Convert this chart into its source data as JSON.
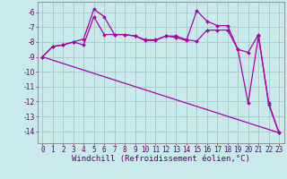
{
  "x": [
    0,
    1,
    2,
    3,
    4,
    5,
    6,
    7,
    8,
    9,
    10,
    11,
    12,
    13,
    14,
    15,
    16,
    17,
    18,
    19,
    20,
    21,
    22,
    23
  ],
  "line1": [
    -9.0,
    -8.3,
    -8.2,
    -8.0,
    -7.8,
    -5.8,
    -6.3,
    -7.5,
    -7.5,
    -7.6,
    -7.9,
    -7.9,
    -7.6,
    -7.7,
    -7.9,
    -5.9,
    -6.6,
    -6.9,
    -6.9,
    -8.5,
    -8.7,
    -7.5,
    -12.2,
    -14.1
  ],
  "line2": [
    -9.0,
    -8.3,
    -8.2,
    -8.0,
    -8.2,
    -6.3,
    -7.5,
    -7.5,
    -7.5,
    -7.6,
    -7.85,
    -7.85,
    -7.6,
    -7.6,
    -7.85,
    -7.95,
    -7.2,
    -7.2,
    -7.2,
    -8.5,
    -12.1,
    -7.6,
    -12.1,
    -14.1
  ],
  "trend_x": [
    0,
    23
  ],
  "trend_y": [
    -9.0,
    -14.1
  ],
  "bg_color": "#c8eaea",
  "grid_color": "#aacccc",
  "line_color": "#aa00aa",
  "ylabel_ticks": [
    -6,
    -7,
    -8,
    -9,
    -10,
    -11,
    -12,
    -13,
    -14
  ],
  "xlim": [
    -0.5,
    23.5
  ],
  "ylim": [
    -14.8,
    -5.3
  ],
  "xlabel": "Windchill (Refroidissement éolien,°C)",
  "xlabel_fontsize": 6.5,
  "tick_fontsize": 5.5
}
